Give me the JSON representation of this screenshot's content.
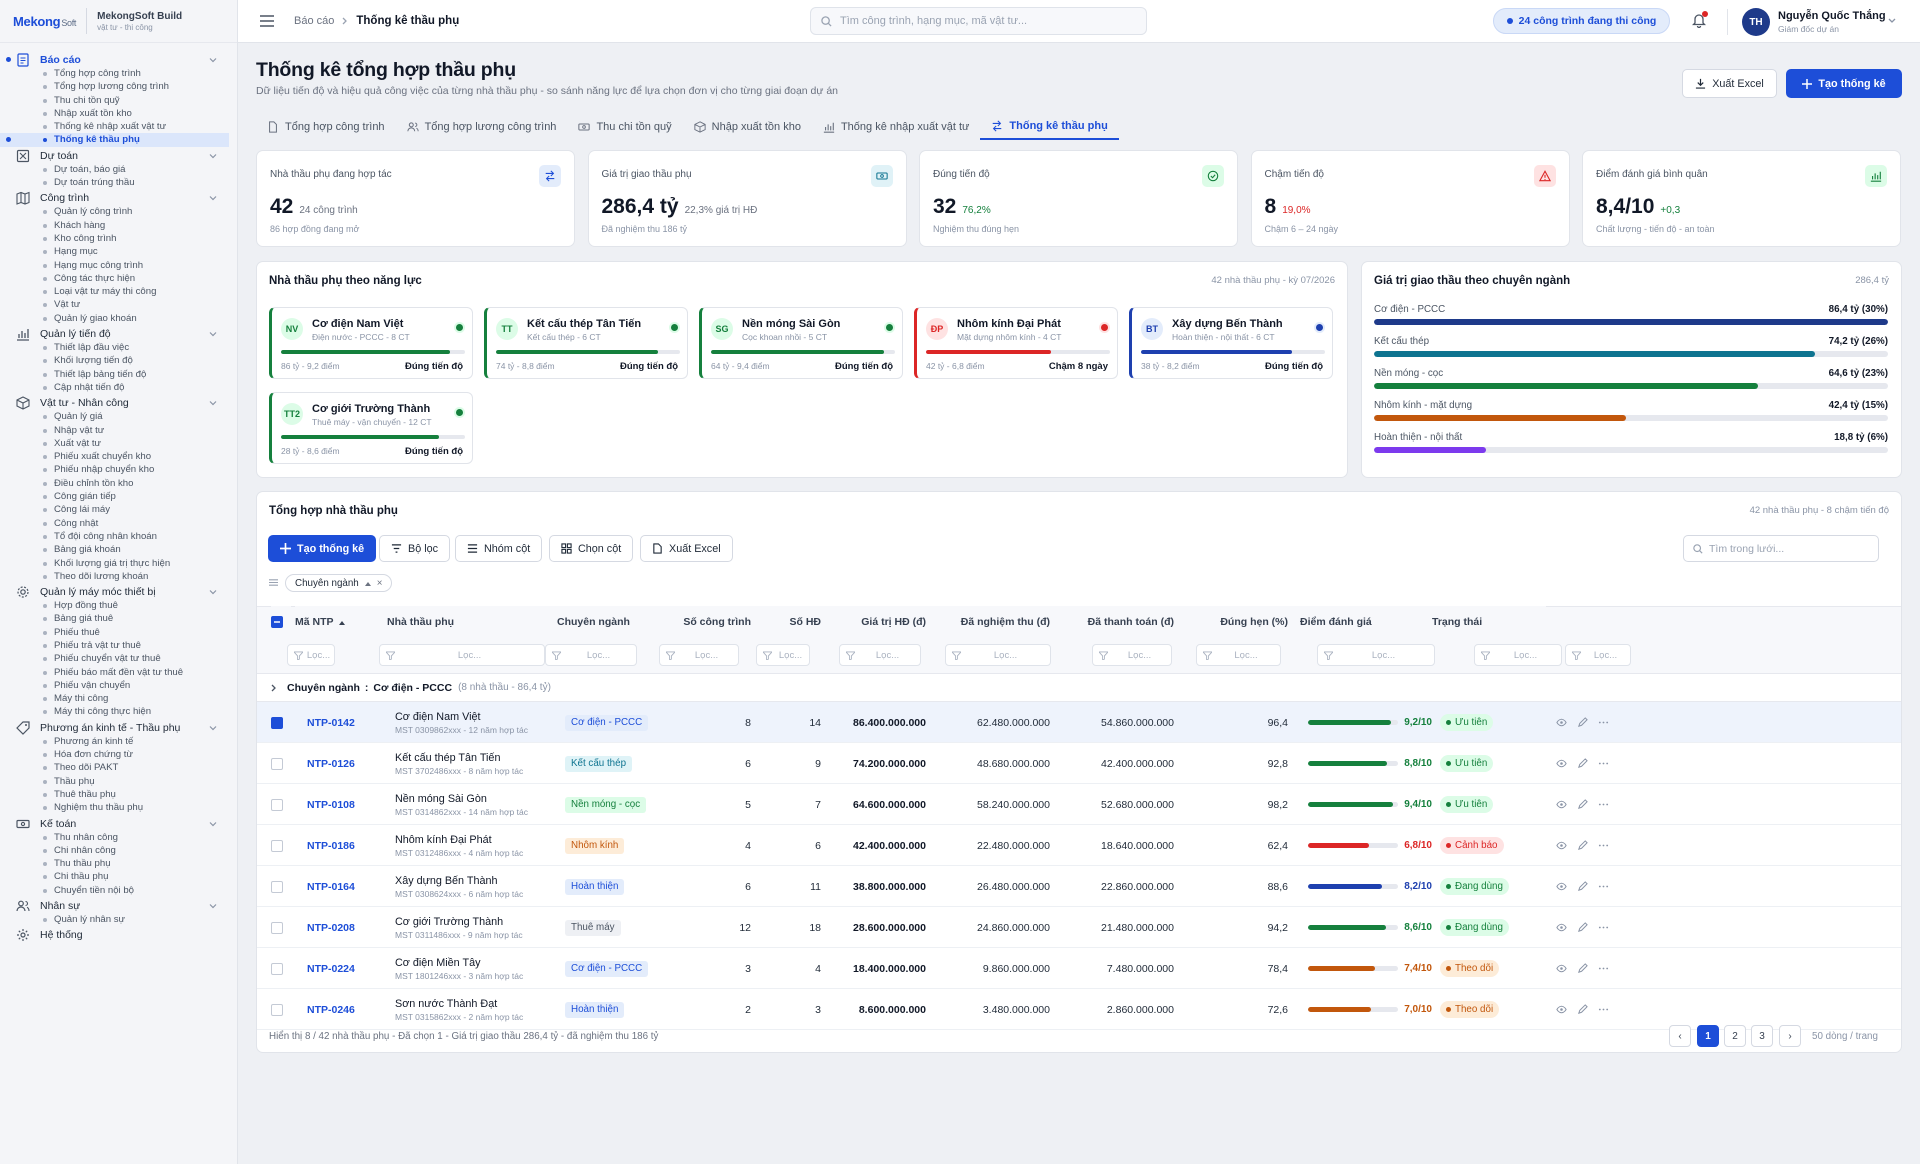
{
  "brand": {
    "logo_main": "Mekong",
    "logo_small": "Soft",
    "app_name": "MekongSoft Build",
    "app_sub": "vật tư - thi công"
  },
  "sidebar": [
    {
      "label": "Báo cáo",
      "icon": "report-icon",
      "active": true,
      "items": [
        {
          "label": "Tổng hợp công trình"
        },
        {
          "label": "Tổng hợp lương công trình"
        },
        {
          "label": "Thu chi tồn quỹ"
        },
        {
          "label": "Nhập xuất tồn kho"
        },
        {
          "label": "Thống kê nhập xuất vật tư"
        },
        {
          "label": "Thống kê thầu phụ",
          "active": true
        }
      ]
    },
    {
      "label": "Dự toán",
      "icon": "estimate-icon",
      "items": [
        {
          "label": "Dự toán, báo giá"
        },
        {
          "label": "Dự toán trúng thầu"
        }
      ]
    },
    {
      "label": "Công trình",
      "icon": "map-icon",
      "items": [
        {
          "label": "Quản lý công trình"
        },
        {
          "label": "Khách hàng"
        },
        {
          "label": "Kho công trình"
        },
        {
          "label": "Hạng mục"
        },
        {
          "label": "Hạng mục công trình"
        },
        {
          "label": "Công tác thực hiện"
        },
        {
          "label": "Loại vật tư máy thi công"
        },
        {
          "label": "Vật tư"
        },
        {
          "label": "Quản lý giao khoán"
        }
      ]
    },
    {
      "label": "Quản lý tiến độ",
      "icon": "chart-icon",
      "items": [
        {
          "label": "Thiết lập đầu việc"
        },
        {
          "label": "Khối lượng tiến độ"
        },
        {
          "label": "Thiết lập bảng tiến độ"
        },
        {
          "label": "Cập nhật tiến độ"
        }
      ]
    },
    {
      "label": "Vật tư - Nhân công",
      "icon": "box-icon",
      "items": [
        {
          "label": "Quản lý giá"
        },
        {
          "label": "Nhập vật tư"
        },
        {
          "label": "Xuất vật tư"
        },
        {
          "label": "Phiếu xuất chuyển kho"
        },
        {
          "label": "Phiếu nhập chuyển kho"
        },
        {
          "label": "Điều chỉnh tồn kho"
        },
        {
          "label": "Công gián tiếp"
        },
        {
          "label": "Công lái máy"
        },
        {
          "label": "Công nhật"
        },
        {
          "label": "Tổ đội công nhân khoán"
        },
        {
          "label": "Bảng giá khoán"
        },
        {
          "label": "Khối lượng giá trị thực hiện"
        },
        {
          "label": "Theo dõi lương khoán"
        }
      ]
    },
    {
      "label": "Quản lý máy móc thiết bị",
      "icon": "gear-icon",
      "items": [
        {
          "label": "Hợp đồng thuê"
        },
        {
          "label": "Bảng giá thuê"
        },
        {
          "label": "Phiếu thuê"
        },
        {
          "label": "Phiếu trả vật tư thuê"
        },
        {
          "label": "Phiếu chuyển vật tư thuê"
        },
        {
          "label": "Phiếu báo mất đền vật tư thuê"
        },
        {
          "label": "Phiếu vận chuyển"
        },
        {
          "label": "Máy thi công"
        },
        {
          "label": "Máy thi công thực hiện"
        }
      ]
    },
    {
      "label": "Phương án kinh tế - Thầu phụ",
      "icon": "tag-icon",
      "items": [
        {
          "label": "Phương án kinh tế"
        },
        {
          "label": "Hóa đơn chứng từ"
        },
        {
          "label": "Theo dõi PAKT"
        },
        {
          "label": "Thầu phụ"
        },
        {
          "label": "Thuê thầu phụ"
        },
        {
          "label": "Nghiệm thu thầu phụ"
        }
      ]
    },
    {
      "label": "Kế toán",
      "icon": "cash-icon",
      "items": [
        {
          "label": "Thu nhân công"
        },
        {
          "label": "Chi nhân công"
        },
        {
          "label": "Thu thầu phụ"
        },
        {
          "label": "Chi thầu phụ"
        },
        {
          "label": "Chuyển tiền nội bộ"
        }
      ]
    },
    {
      "label": "Nhân sự",
      "icon": "users-icon",
      "items": [
        {
          "label": "Quản lý nhân sự"
        }
      ]
    },
    {
      "label": "Hệ thống",
      "icon": "settings-icon",
      "items": []
    }
  ],
  "topbar": {
    "crumb_root": "Báo cáo",
    "crumb_current": "Thống kê thầu phụ",
    "search_placeholder": "Tìm công trình, hạng mục, mã vật tư...",
    "active_sites": "24 công trình đang thi công",
    "user_initials": "TH",
    "user_name": "Nguyễn Quốc Thắng",
    "user_role": "Giám đốc dự án"
  },
  "page": {
    "title": "Thống kê tổng hợp thầu phụ",
    "subtitle": "Dữ liệu tiến độ và hiệu quả công việc của từng nhà thầu phụ - so sánh năng lực để lựa chọn đơn vị cho từng giai đoạn dự án",
    "export_label": "Xuất Excel",
    "create_label": "Tạo thống kê"
  },
  "tabs": [
    {
      "label": "Tổng hợp công trình",
      "icon": "doc-icon"
    },
    {
      "label": "Tổng hợp lương công trình",
      "icon": "users-icon"
    },
    {
      "label": "Thu chi tồn quỹ",
      "icon": "cash-icon"
    },
    {
      "label": "Nhập xuất tồn kho",
      "icon": "box-icon"
    },
    {
      "label": "Thống kê nhập xuất vật tư",
      "icon": "chart-icon"
    },
    {
      "label": "Thống kê thầu phụ",
      "icon": "swap-icon",
      "active": true
    }
  ],
  "kpis": [
    {
      "label": "Nhà thầu phụ đang hợp tác",
      "value": "42",
      "extra": "24 công trình",
      "extra_color": "#6b7280",
      "note": "86 hợp đồng đang mở",
      "icon": "swap-icon",
      "icon_bg": "#e3ecfb",
      "icon_color": "#1d4ed8"
    },
    {
      "label": "Giá trị giao thầu phụ",
      "value": "286,4 tỷ",
      "extra": "22,3% giá trị HĐ",
      "extra_color": "#6b7280",
      "note": "Đã nghiệm thu 186 tỷ",
      "icon": "cash-icon",
      "icon_bg": "#e0f2f7",
      "icon_color": "#0e7490"
    },
    {
      "label": "Đúng tiến độ",
      "value": "32",
      "extra": "76,2%",
      "extra_color": "#15803d",
      "note": "Nghiệm thu đúng hẹn",
      "icon": "check-icon",
      "icon_bg": "#dcfce7",
      "icon_color": "#15803d"
    },
    {
      "label": "Chậm tiến độ",
      "value": "8",
      "extra": "19,0%",
      "extra_color": "#dc2626",
      "note": "Chậm 6 – 24 ngày",
      "icon": "warning-icon",
      "icon_bg": "#fee2e2",
      "icon_color": "#dc2626"
    },
    {
      "label": "Điểm đánh giá bình quân",
      "value": "8,4/10",
      "extra": "+0,3",
      "extra_color": "#15803d",
      "note": "Chất lượng - tiến độ - an toàn",
      "icon": "chart-icon",
      "icon_bg": "#dcfce7",
      "icon_color": "#15803d"
    }
  ],
  "capability": {
    "title": "Nhà thầu phụ theo năng lực",
    "note": "42 nhà thầu phụ - kỳ 07/2026",
    "vendors": [
      {
        "initials": "NV",
        "name": "Cơ điện Nam Việt",
        "sub": "Điện nước - PCCC - 8 CT",
        "meta": "86 tỷ - 9,2 điểm",
        "status": "Đúng tiến độ",
        "level": 0.92,
        "color": "#15803d",
        "av_bg": "#dcfce7",
        "av_fg": "#15803d"
      },
      {
        "initials": "TT",
        "name": "Kết cấu thép Tân Tiến",
        "sub": "Kết cấu thép - 6 CT",
        "meta": "74 tỷ - 8,8 điểm",
        "status": "Đúng tiến độ",
        "level": 0.88,
        "color": "#15803d",
        "av_bg": "#dcfce7",
        "av_fg": "#15803d"
      },
      {
        "initials": "SG",
        "name": "Nền móng Sài Gòn",
        "sub": "Cọc khoan nhồi - 5 CT",
        "meta": "64 tỷ - 9,4 điểm",
        "status": "Đúng tiến độ",
        "level": 0.94,
        "color": "#15803d",
        "av_bg": "#dcfce7",
        "av_fg": "#15803d"
      },
      {
        "initials": "ĐP",
        "name": "Nhôm kính Đại Phát",
        "sub": "Mặt dựng nhôm kính - 4 CT",
        "meta": "42 tỷ - 6,8 điểm",
        "status": "Chậm 8 ngày",
        "level": 0.68,
        "color": "#dc2626",
        "av_bg": "#fee2e2",
        "av_fg": "#dc2626"
      },
      {
        "initials": "BT",
        "name": "Xây dựng Bến Thành",
        "sub": "Hoàn thiện - nội thất - 6 CT",
        "meta": "38 tỷ - 8,2 điểm",
        "status": "Đúng tiến độ",
        "level": 0.82,
        "color": "#1e40af",
        "av_bg": "#e3ecfb",
        "av_fg": "#1e40af"
      },
      {
        "initials": "TT2",
        "name": "Cơ giới Trường Thành",
        "sub": "Thuê máy - vận chuyển - 12 CT",
        "meta": "28 tỷ - 8,6 điểm",
        "status": "Đúng tiến độ",
        "level": 0.86,
        "color": "#15803d",
        "av_bg": "#dcfce7",
        "av_fg": "#15803d"
      }
    ]
  },
  "chart_data": {
    "type": "bar",
    "title": "Giá trị giao thầu theo chuyên ngành",
    "note": "286,4 tỷ",
    "categories": [
      "Cơ điện - PCCC",
      "Kết cấu thép",
      "Nền móng - cọc",
      "Nhôm kính - mặt dựng",
      "Hoàn thiện - nội thất"
    ],
    "values": [
      86.4,
      74.2,
      64.6,
      42.4,
      18.8
    ],
    "labels": [
      "86,4 tỷ (30%)",
      "74,2 tỷ (26%)",
      "64,6 tỷ (23%)",
      "42,4 tỷ (15%)",
      "18,8 tỷ (6%)"
    ],
    "colors": [
      "#1e3a8a",
      "#0e7490",
      "#15803d",
      "#c2570c",
      "#7c3aed"
    ],
    "xlim": [
      0,
      86.4
    ]
  },
  "table": {
    "title": "Tổng hợp nhà thầu phụ",
    "note": "42 nhà thầu phụ - 8 chậm tiến độ",
    "toolbar": {
      "create": "Tạo thống kê",
      "filter": "Bộ lọc",
      "group": "Nhóm cột",
      "columns": "Chọn cột",
      "export": "Xuất Excel",
      "search_placeholder": "Tìm trong lưới..."
    },
    "chip": "Chuyên ngành",
    "filter_placeholder": "Lọc...",
    "headers": {
      "code": "Mã NTP",
      "name": "Nhà thầu phụ",
      "field": "Chuyên ngành",
      "sites": "Số công trình",
      "contracts": "Số HĐ",
      "value": "Giá trị HĐ (đ)",
      "accepted": "Đã nghiệm thu (đ)",
      "paid": "Đã thanh toán (đ)",
      "ontime": "Đúng hẹn (%)",
      "score": "Điểm đánh giá",
      "status": "Trạng thái"
    },
    "group": {
      "label": "Chuyên ngành",
      "value": "Cơ điện - PCCC",
      "detail": "(8 nhà thầu - 86,4 tỷ)"
    },
    "rows": [
      {
        "code": "NTP-0142",
        "name": "Cơ điện Nam Việt",
        "sub": "MST 0309862xxx - 12 năm hợp tác",
        "field": "Cơ điện - PCCC",
        "field_bg": "#e3ecfb",
        "field_fg": "#1d4ed8",
        "sites": "8",
        "contracts": "14",
        "value": "86.400.000.000",
        "accepted": "62.480.000.000",
        "paid": "54.860.000.000",
        "ontime": "96,4",
        "score": "9,2/10",
        "score_level": 0.92,
        "score_color": "#15803d",
        "status": "Ưu tiên",
        "st_bg": "#dcfce7",
        "st_fg": "#15803d",
        "checked": true
      },
      {
        "code": "NTP-0126",
        "name": "Kết cấu thép Tân Tiến",
        "sub": "MST 3702486xxx - 8 năm hợp tác",
        "field": "Kết cấu thép",
        "field_bg": "#dff3f7",
        "field_fg": "#0e7490",
        "sites": "6",
        "contracts": "9",
        "value": "74.200.000.000",
        "accepted": "48.680.000.000",
        "paid": "42.400.000.000",
        "ontime": "92,8",
        "score": "8,8/10",
        "score_level": 0.88,
        "score_color": "#15803d",
        "status": "Ưu tiên",
        "st_bg": "#dcfce7",
        "st_fg": "#15803d",
        "checked": false
      },
      {
        "code": "NTP-0108",
        "name": "Nền móng Sài Gòn",
        "sub": "MST 0314862xxx - 14 năm hợp tác",
        "field": "Nền móng - cọc",
        "field_bg": "#dcfce7",
        "field_fg": "#15803d",
        "sites": "5",
        "contracts": "7",
        "value": "64.600.000.000",
        "accepted": "58.240.000.000",
        "paid": "52.680.000.000",
        "ontime": "98,2",
        "score": "9,4/10",
        "score_level": 0.94,
        "score_color": "#15803d",
        "status": "Ưu tiên",
        "st_bg": "#dcfce7",
        "st_fg": "#15803d",
        "checked": false
      },
      {
        "code": "NTP-0186",
        "name": "Nhôm kính Đại Phát",
        "sub": "MST 0312486xxx - 4 năm hợp tác",
        "field": "Nhôm kính",
        "field_bg": "#fdecd8",
        "field_fg": "#c2570c",
        "sites": "4",
        "contracts": "6",
        "value": "42.400.000.000",
        "accepted": "22.480.000.000",
        "paid": "18.640.000.000",
        "ontime": "62,4",
        "score": "6,8/10",
        "score_level": 0.68,
        "score_color": "#dc2626",
        "status": "Cảnh báo",
        "st_bg": "#fee2e2",
        "st_fg": "#dc2626",
        "checked": false
      },
      {
        "code": "NTP-0164",
        "name": "Xây dựng Bến Thành",
        "sub": "MST 0308624xxx - 6 năm hợp tác",
        "field": "Hoàn thiện",
        "field_bg": "#e3ecfb",
        "field_fg": "#1d4ed8",
        "sites": "6",
        "contracts": "11",
        "value": "38.800.000.000",
        "accepted": "26.480.000.000",
        "paid": "22.860.000.000",
        "ontime": "88,6",
        "score": "8,2/10",
        "score_level": 0.82,
        "score_color": "#1e40af",
        "status": "Đang dùng",
        "st_bg": "#dcfce7",
        "st_fg": "#15803d",
        "checked": false
      },
      {
        "code": "NTP-0208",
        "name": "Cơ giới Trường Thành",
        "sub": "MST 0311486xxx - 9 năm hợp tác",
        "field": "Thuê máy",
        "field_bg": "#eef0f4",
        "field_fg": "#4b5563",
        "sites": "12",
        "contracts": "18",
        "value": "28.600.000.000",
        "accepted": "24.860.000.000",
        "paid": "21.480.000.000",
        "ontime": "94,2",
        "score": "8,6/10",
        "score_level": 0.86,
        "score_color": "#15803d",
        "status": "Đang dùng",
        "st_bg": "#dcfce7",
        "st_fg": "#15803d",
        "checked": false
      },
      {
        "code": "NTP-0224",
        "name": "Cơ điện Miền Tây",
        "sub": "MST 1801246xxx - 3 năm hợp tác",
        "field": "Cơ điện - PCCC",
        "field_bg": "#e3ecfb",
        "field_fg": "#1d4ed8",
        "sites": "3",
        "contracts": "4",
        "value": "18.400.000.000",
        "accepted": "9.860.000.000",
        "paid": "7.480.000.000",
        "ontime": "78,4",
        "score": "7,4/10",
        "score_level": 0.74,
        "score_color": "#c2570c",
        "status": "Theo dõi",
        "st_bg": "#fdecd8",
        "st_fg": "#c2570c",
        "checked": false
      },
      {
        "code": "NTP-0246",
        "name": "Sơn nước Thành Đạt",
        "sub": "MST 0315862xxx - 2 năm hợp tác",
        "field": "Hoàn thiện",
        "field_bg": "#e3ecfb",
        "field_fg": "#1d4ed8",
        "sites": "2",
        "contracts": "3",
        "value": "8.600.000.000",
        "accepted": "3.480.000.000",
        "paid": "2.860.000.000",
        "ontime": "72,6",
        "score": "7,0/10",
        "score_level": 0.7,
        "score_color": "#c2570c",
        "status": "Theo dõi",
        "st_bg": "#fdecd8",
        "st_fg": "#c2570c",
        "checked": false
      }
    ],
    "footer": "Hiển thị 8 / 42 nhà thầu phụ - Đã chọn 1 - Giá trị giao thầu 286,4 tỷ - đã nghiệm thu 186 tỷ",
    "pages": [
      "1",
      "2",
      "3"
    ],
    "page_size": "50 dòng / trang"
  }
}
